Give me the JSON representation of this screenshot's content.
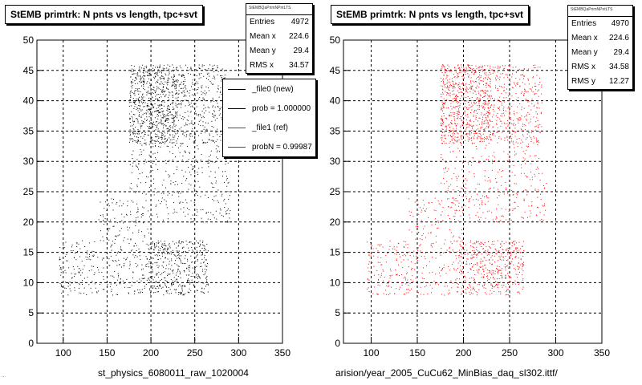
{
  "panels": [
    {
      "title": "StEMB primtrk: N pnts vs length, tpc+svt",
      "stats": {
        "header": "StEMBQaPrimNPntLTS",
        "rows": [
          {
            "label": "Entries",
            "value": "4972"
          },
          {
            "label": "Mean x",
            "value": "224.6"
          },
          {
            "label": "Mean y",
            "value": "29.4"
          },
          {
            "label": "RMS x",
            "value": "34.57"
          }
        ]
      },
      "footer": "st_physics_6080011_raw_1020004",
      "marker_color": "#000000"
    },
    {
      "title": "StEMB primtrk: N pnts vs length, tpc+svt",
      "stats": {
        "header": "StEMBQaPrimNPntLTS",
        "rows": [
          {
            "label": "Entries",
            "value": "4970"
          },
          {
            "label": "Mean x",
            "value": "224.6"
          },
          {
            "label": "Mean y",
            "value": "29.4"
          },
          {
            "label": "RMS x",
            "value": "34.58"
          },
          {
            "label": "RMS y",
            "value": "12.27"
          }
        ]
      },
      "footer": "arision/year_2005_CuCu62_MinBias_daq_sl302.ittf/",
      "marker_color": "#ff0000"
    }
  ],
  "legend": {
    "entries": [
      {
        "label": "_file0 (new)",
        "color": "#000000"
      },
      {
        "label": "prob = 1.000000",
        "color": "#000000"
      },
      {
        "label": "_file1 (ref)",
        "color": "#ff0000"
      },
      {
        "label": "probN = 0.99987",
        "color": "#ff0000"
      }
    ]
  },
  "corner_note": "...",
  "chart_data": [
    {
      "type": "scatter",
      "title": "StEMB primtrk: N pnts vs length, tpc+svt",
      "xlim": [
        70,
        350
      ],
      "ylim": [
        0,
        50
      ],
      "x_ticks": [
        100,
        150,
        200,
        250,
        300,
        350
      ],
      "y_ticks": [
        0,
        5,
        10,
        15,
        20,
        25,
        30,
        35,
        40,
        45,
        50
      ],
      "grid": true,
      "entries": 4972,
      "clusters": [
        {
          "x_range": [
            175,
            230
          ],
          "y_range": [
            33,
            46
          ],
          "weight": 0.34
        },
        {
          "x_range": [
            230,
            285
          ],
          "y_range": [
            33,
            46
          ],
          "weight": 0.16
        },
        {
          "x_range": [
            175,
            290
          ],
          "y_range": [
            20,
            33
          ],
          "weight": 0.14
        },
        {
          "x_range": [
            195,
            265
          ],
          "y_range": [
            8,
            17
          ],
          "weight": 0.2
        },
        {
          "x_range": [
            95,
            195
          ],
          "y_range": [
            8,
            17
          ],
          "weight": 0.12
        },
        {
          "x_range": [
            140,
            200
          ],
          "y_range": [
            17,
            24
          ],
          "weight": 0.04
        }
      ]
    },
    {
      "type": "scatter",
      "title": "StEMB primtrk: N pnts vs length, tpc+svt",
      "xlim": [
        70,
        350
      ],
      "ylim": [
        0,
        50
      ],
      "x_ticks": [
        100,
        150,
        200,
        250,
        300,
        350
      ],
      "y_ticks": [
        0,
        5,
        10,
        15,
        20,
        25,
        30,
        35,
        40,
        45,
        50
      ],
      "grid": true,
      "entries": 4970,
      "clusters": [
        {
          "x_range": [
            175,
            230
          ],
          "y_range": [
            33,
            46
          ],
          "weight": 0.34
        },
        {
          "x_range": [
            230,
            285
          ],
          "y_range": [
            33,
            46
          ],
          "weight": 0.16
        },
        {
          "x_range": [
            175,
            290
          ],
          "y_range": [
            20,
            33
          ],
          "weight": 0.14
        },
        {
          "x_range": [
            195,
            265
          ],
          "y_range": [
            8,
            17
          ],
          "weight": 0.2
        },
        {
          "x_range": [
            95,
            195
          ],
          "y_range": [
            8,
            17
          ],
          "weight": 0.12
        },
        {
          "x_range": [
            140,
            200
          ],
          "y_range": [
            17,
            24
          ],
          "weight": 0.04
        }
      ]
    }
  ]
}
